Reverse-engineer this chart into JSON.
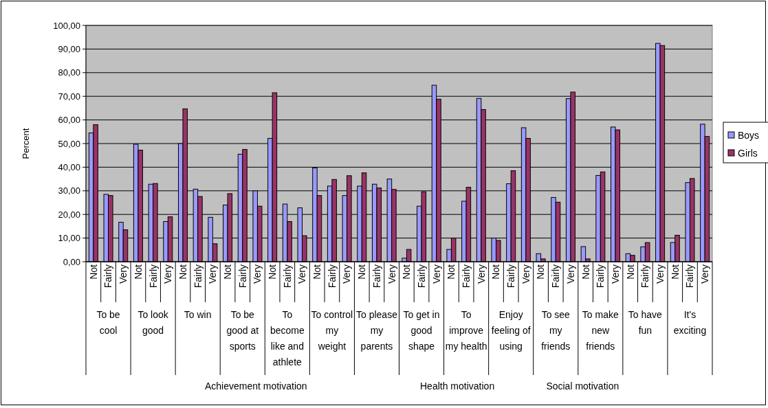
{
  "chart_data": {
    "type": "bar",
    "ylabel": "Percent",
    "categories": [
      "Not",
      "Fairly",
      "Very",
      "Not",
      "Fairly",
      "Very",
      "Not",
      "Fairly",
      "Very",
      "Not",
      "Fairly",
      "Very",
      "Not",
      "Fairly",
      "Very",
      "Not",
      "Fairly",
      "Very",
      "Not",
      "Fairly",
      "Very",
      "Not",
      "Fairly",
      "Very",
      "Not",
      "Fairly",
      "Very",
      "Not",
      "Fairly",
      "Very",
      "Not",
      "Fairly",
      "Very",
      "Not",
      "Fairly",
      "Very",
      "Not",
      "Fairly",
      "Very",
      "Not",
      "Fairly",
      "Very"
    ],
    "series": [
      {
        "name": "Boys",
        "color": "#9999ff",
        "values": [
          54.5,
          28.5,
          16.7,
          49.7,
          32.8,
          17,
          50,
          30.7,
          18.8,
          24,
          45.5,
          30,
          52.2,
          24.4,
          22.8,
          39.7,
          32,
          28,
          32,
          32.8,
          35,
          1.5,
          23.5,
          74.7,
          5.2,
          25.6,
          69.1,
          10,
          33,
          56.7,
          3.4,
          27.2,
          69,
          6.4,
          36.5,
          57,
          3.4,
          6.3,
          92.4,
          8.1,
          33.5,
          58.2
        ]
      },
      {
        "name": "Girls",
        "color": "#993366",
        "values": [
          58,
          28,
          13.5,
          47.2,
          33.1,
          19,
          64.7,
          27.6,
          7.6,
          28.8,
          47.5,
          23.5,
          71.5,
          17,
          11,
          28,
          34.8,
          36.4,
          37.6,
          31.2,
          30.6,
          5.2,
          29.6,
          68.8,
          10,
          31.5,
          64.4,
          9,
          38.5,
          52.2,
          1.2,
          25.2,
          71.8,
          1.2,
          38,
          55.8,
          2.7,
          8.1,
          91.5,
          11.2,
          35.2,
          53
        ]
      }
    ],
    "ylim": [
      0,
      100
    ],
    "yticks": [
      {
        "value": 0,
        "label": "0,00"
      },
      {
        "value": 10,
        "label": "10,00"
      },
      {
        "value": 20,
        "label": "20,00"
      },
      {
        "value": 30,
        "label": "30,00"
      },
      {
        "value": 40,
        "label": "40,00"
      },
      {
        "value": 50,
        "label": "50,00"
      },
      {
        "value": 60,
        "label": "60,00"
      },
      {
        "value": 70,
        "label": "70,00"
      },
      {
        "value": 80,
        "label": "80,00"
      },
      {
        "value": 90,
        "label": "90,00"
      },
      {
        "value": 100,
        "label": "100,00"
      }
    ],
    "grid": "y",
    "legend": "right",
    "annotations": [
      "To be cool",
      "To look good",
      "To win",
      "To be good at sports",
      "To become like and athlete",
      "To control my weight",
      "To please my parents",
      "To get in good shape",
      "To improve my health",
      "Enjoy feeling of using",
      "To see my friends",
      "To make new friends",
      "To have fun",
      "It's exciting",
      "Achievement motivation",
      "Health motivation",
      "Social motivation"
    ]
  }
}
